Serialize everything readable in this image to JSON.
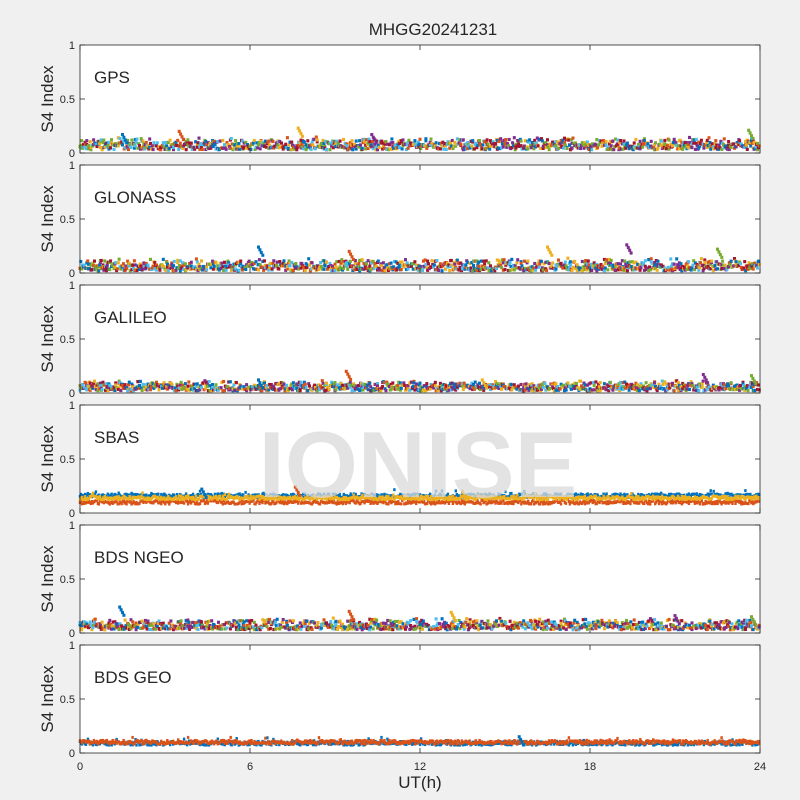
{
  "figure": {
    "title": "MHGG20241231",
    "xlabel": "UT(h)",
    "watermark": "IONISE",
    "background": "#f0f0f0"
  },
  "chart_data": [
    {
      "type": "scatter",
      "panel_label": "GPS",
      "ylabel": "S4 Index",
      "xlim": [
        0,
        24
      ],
      "ylim": [
        0,
        1
      ],
      "xticks": [
        "0",
        "6",
        "12",
        "18",
        "24"
      ],
      "yticks": [
        "0",
        "0.5",
        "1"
      ],
      "show_xticklabels": false,
      "series_colors": [
        "#0072BD",
        "#D95319",
        "#EDB120",
        "#7E2F8E",
        "#77AC30",
        "#4DBEEE",
        "#A2142F"
      ],
      "typical_range": [
        0.03,
        0.15
      ],
      "peaks": [
        {
          "x": 1.5,
          "y": 0.17
        },
        {
          "x": 3.5,
          "y": 0.2
        },
        {
          "x": 7.7,
          "y": 0.23
        },
        {
          "x": 10.3,
          "y": 0.17
        },
        {
          "x": 23.6,
          "y": 0.21
        }
      ]
    },
    {
      "type": "scatter",
      "panel_label": "GLONASS",
      "ylabel": "S4 Index",
      "xlim": [
        0,
        24
      ],
      "ylim": [
        0,
        1
      ],
      "xticks": [
        "0",
        "6",
        "12",
        "18",
        "24"
      ],
      "yticks": [
        "0",
        "0.5",
        "1"
      ],
      "show_xticklabels": false,
      "series_colors": [
        "#0072BD",
        "#D95319",
        "#EDB120",
        "#7E2F8E",
        "#77AC30",
        "#4DBEEE",
        "#A2142F"
      ],
      "typical_range": [
        0.02,
        0.14
      ],
      "peaks": [
        {
          "x": 6.3,
          "y": 0.24
        },
        {
          "x": 9.5,
          "y": 0.2
        },
        {
          "x": 16.5,
          "y": 0.24
        },
        {
          "x": 19.3,
          "y": 0.26
        },
        {
          "x": 22.5,
          "y": 0.22
        }
      ]
    },
    {
      "type": "scatter",
      "panel_label": "GALILEO",
      "ylabel": "S4 Index",
      "xlim": [
        0,
        24
      ],
      "ylim": [
        0,
        1
      ],
      "xticks": [
        "0",
        "6",
        "12",
        "18",
        "24"
      ],
      "yticks": [
        "0",
        "0.5",
        "1"
      ],
      "show_xticklabels": false,
      "series_colors": [
        "#0072BD",
        "#D95319",
        "#EDB120",
        "#7E2F8E",
        "#77AC30",
        "#4DBEEE",
        "#A2142F"
      ],
      "typical_range": [
        0.02,
        0.12
      ],
      "peaks": [
        {
          "x": 6.3,
          "y": 0.12
        },
        {
          "x": 9.4,
          "y": 0.2
        },
        {
          "x": 14.2,
          "y": 0.12
        },
        {
          "x": 22.0,
          "y": 0.17
        },
        {
          "x": 23.7,
          "y": 0.16
        }
      ]
    },
    {
      "type": "scatter",
      "panel_label": "SBAS",
      "ylabel": "S4 Index",
      "xlim": [
        0,
        24
      ],
      "ylim": [
        0,
        1
      ],
      "xticks": [
        "0",
        "6",
        "12",
        "18",
        "24"
      ],
      "yticks": [
        "0",
        "0.5",
        "1"
      ],
      "show_xticklabels": false,
      "series_colors": [
        "#0072BD",
        "#D95319",
        "#EDB120"
      ],
      "series_levels": [
        0.16,
        0.1,
        0.14
      ],
      "peaks": [
        {
          "x": 4.3,
          "y": 0.22
        },
        {
          "x": 7.6,
          "y": 0.24
        },
        {
          "x": 13.5,
          "y": 0.2
        }
      ]
    },
    {
      "type": "scatter",
      "panel_label": "BDS NGEO",
      "ylabel": "S4 Index",
      "xlim": [
        0,
        24
      ],
      "ylim": [
        0,
        1
      ],
      "xticks": [
        "0",
        "6",
        "12",
        "18",
        "24"
      ],
      "yticks": [
        "0",
        "0.5",
        "1"
      ],
      "show_xticklabels": false,
      "series_colors": [
        "#0072BD",
        "#D95319",
        "#EDB120",
        "#7E2F8E",
        "#77AC30",
        "#4DBEEE",
        "#A2142F"
      ],
      "typical_range": [
        0.03,
        0.14
      ],
      "peaks": [
        {
          "x": 1.4,
          "y": 0.24
        },
        {
          "x": 9.5,
          "y": 0.2
        },
        {
          "x": 13.1,
          "y": 0.19
        },
        {
          "x": 21.0,
          "y": 0.16
        },
        {
          "x": 23.7,
          "y": 0.15
        }
      ]
    },
    {
      "type": "scatter",
      "panel_label": "BDS GEO",
      "ylabel": "S4 Index",
      "xlim": [
        0,
        24
      ],
      "ylim": [
        0,
        1
      ],
      "xticks": [
        "0",
        "6",
        "12",
        "18",
        "24"
      ],
      "yticks": [
        "0",
        "0.5",
        "1"
      ],
      "show_xticklabels": true,
      "series_colors": [
        "#0072BD",
        "#D95319"
      ],
      "series_levels": [
        0.09,
        0.1
      ],
      "peaks": [
        {
          "x": 15.5,
          "y": 0.15
        }
      ]
    }
  ]
}
